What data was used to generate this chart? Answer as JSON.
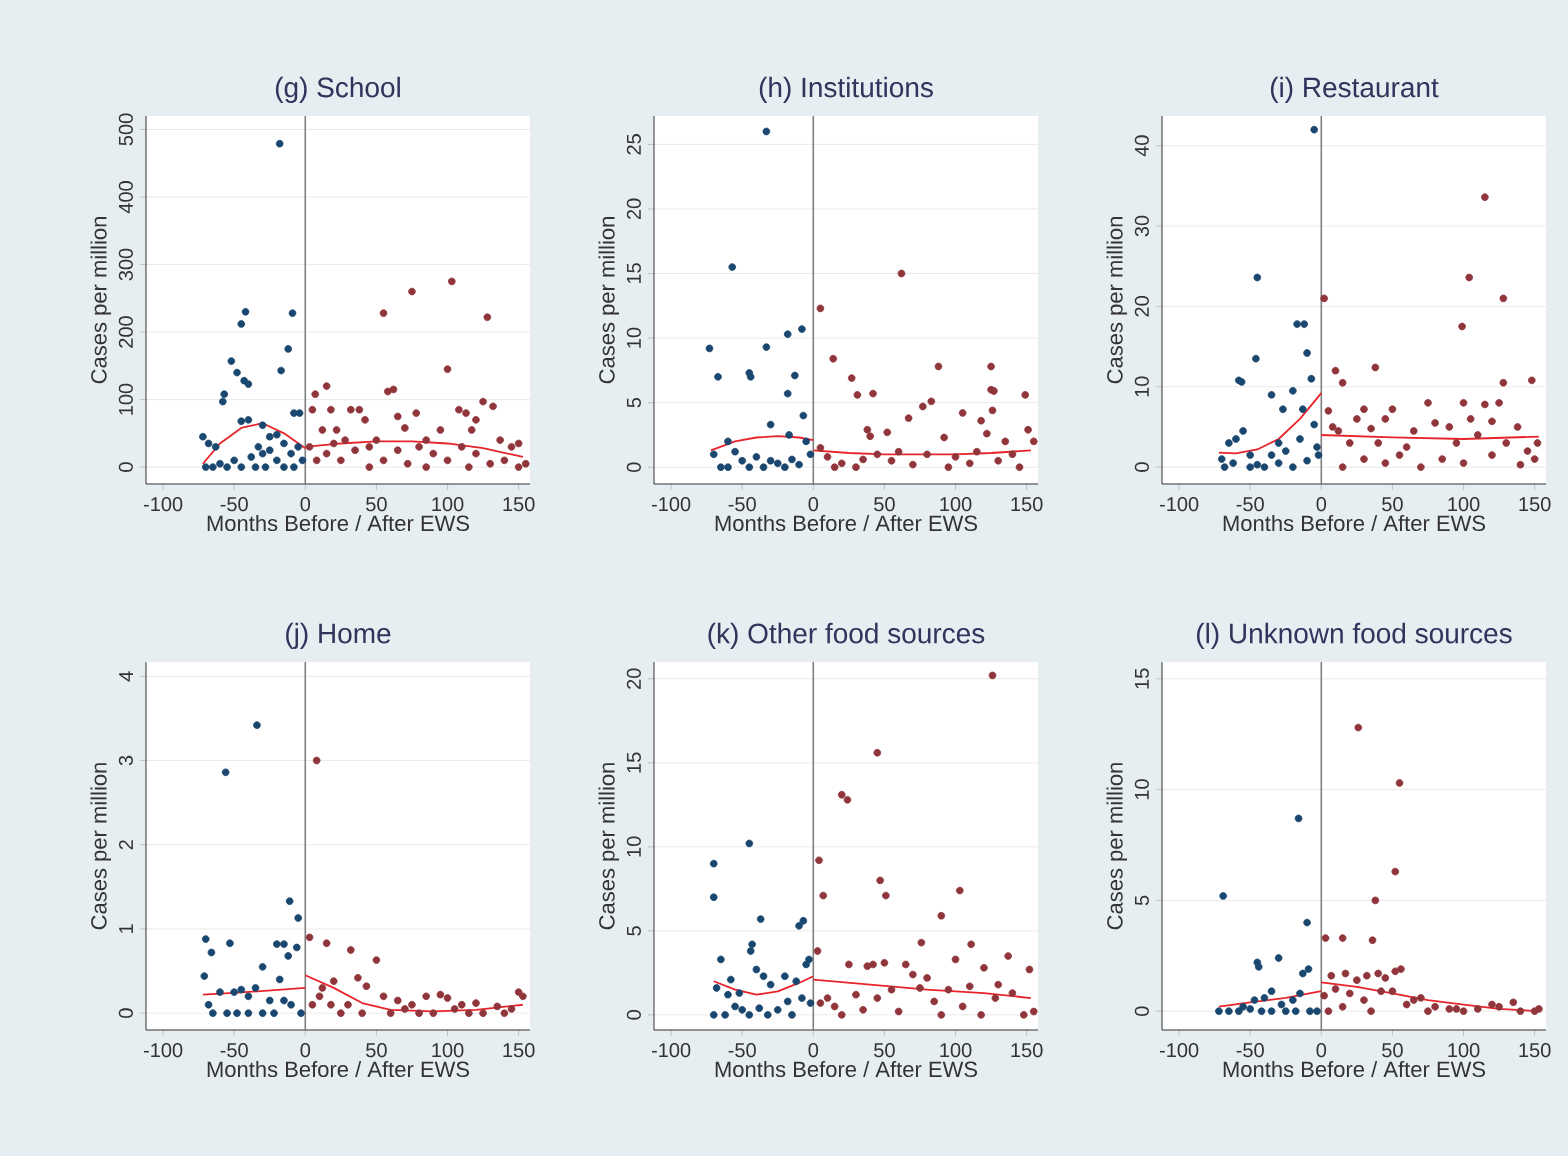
{
  "chart_data": [
    {
      "type": "scatter",
      "title": "(g) School",
      "xlabel": "Months Before / After EWS",
      "ylabel": "Cases per million",
      "xlim": [
        -112,
        158
      ],
      "xticks": [
        -100,
        -50,
        0,
        50,
        100,
        150
      ],
      "ylim": [
        -25,
        520
      ],
      "yticks": [
        0,
        100,
        200,
        300,
        400,
        500
      ],
      "grid": "y",
      "marker": "circle",
      "ref_lines": [
        {
          "axis": "x",
          "value": 0,
          "color": "#7f7f7f"
        }
      ],
      "series": [
        {
          "type": "scatter",
          "color": "#1a476f",
          "x": [
            -18,
            -42,
            -45,
            -9,
            -12,
            -17,
            -52,
            -48,
            -43,
            -40,
            -57,
            -58,
            -40,
            -45,
            -30,
            -8,
            -4,
            -72,
            -68,
            -63,
            -25,
            -20,
            -15,
            -50,
            -60,
            -70,
            -65,
            -55,
            -45,
            -35,
            -30,
            -25,
            -20,
            -15,
            -10,
            -5,
            -2,
            -38,
            -33,
            -28,
            -8
          ],
          "values": [
            479,
            230,
            212,
            228,
            175,
            143,
            157,
            140,
            128,
            123,
            108,
            97,
            70,
            68,
            62,
            80,
            80,
            45,
            35,
            30,
            45,
            48,
            35,
            10,
            5,
            0,
            0,
            0,
            0,
            0,
            20,
            25,
            10,
            0,
            20,
            30,
            10,
            15,
            30,
            0,
            0
          ]
        },
        {
          "type": "scatter",
          "color": "#90353b",
          "x": [
            5,
            7,
            12,
            15,
            18,
            22,
            28,
            32,
            38,
            42,
            55,
            58,
            62,
            65,
            70,
            75,
            78,
            85,
            95,
            100,
            103,
            108,
            113,
            117,
            120,
            125,
            128,
            132,
            137,
            145,
            150,
            3,
            8,
            15,
            20,
            25,
            35,
            45,
            50,
            55,
            65,
            72,
            80,
            90,
            100,
            110,
            120,
            130,
            140,
            150,
            155,
            45,
            85,
            115
          ],
          "values": [
            85,
            108,
            55,
            120,
            85,
            55,
            40,
            85,
            85,
            70,
            228,
            112,
            115,
            75,
            58,
            260,
            80,
            40,
            55,
            145,
            275,
            85,
            80,
            55,
            70,
            97,
            222,
            90,
            40,
            30,
            35,
            30,
            10,
            20,
            35,
            10,
            25,
            30,
            40,
            10,
            25,
            5,
            30,
            20,
            10,
            30,
            20,
            5,
            10,
            0,
            5,
            0,
            0,
            0
          ]
        },
        {
          "type": "line",
          "color": "#e8242b",
          "marker": "none",
          "x": [
            -72,
            -60,
            -45,
            -30,
            -15,
            0
          ],
          "values": [
            5,
            35,
            58,
            65,
            50,
            28
          ]
        },
        {
          "type": "line",
          "color": "#e8242b",
          "marker": "none",
          "x": [
            0,
            25,
            50,
            75,
            100,
            125,
            153
          ],
          "values": [
            30,
            35,
            38,
            38,
            35,
            28,
            15
          ]
        }
      ]
    },
    {
      "type": "scatter",
      "title": "(h) Institutions",
      "xlabel": "Months Before / After EWS",
      "ylabel": "Cases per million",
      "xlim": [
        -112,
        158
      ],
      "xticks": [
        -100,
        -50,
        0,
        50,
        100,
        150
      ],
      "ylim": [
        -1.3,
        27.2
      ],
      "yticks": [
        0,
        5,
        10,
        15,
        20,
        25
      ],
      "grid": "y",
      "marker": "circle",
      "ref_lines": [
        {
          "axis": "x",
          "value": 0,
          "color": "#7f7f7f"
        }
      ],
      "series": [
        {
          "type": "scatter",
          "color": "#1a476f",
          "x": [
            -73,
            -67,
            -57,
            -45,
            -44,
            -33,
            -33,
            -30,
            -18,
            -18,
            -13,
            -8,
            -7,
            -17,
            -60,
            -55,
            -70,
            -65,
            -50,
            -40,
            -35,
            -25,
            -20,
            -10,
            -5,
            -2,
            -45,
            -30,
            -15,
            -60
          ],
          "values": [
            9.2,
            7,
            15.5,
            7.3,
            7,
            26,
            9.3,
            3.3,
            10.3,
            5.7,
            7.1,
            10.7,
            4,
            2.5,
            2,
            1.2,
            1,
            0,
            0.5,
            0.8,
            0,
            0.3,
            0,
            0.2,
            2,
            1,
            0,
            0.5,
            0.6,
            0
          ]
        },
        {
          "type": "scatter",
          "color": "#90353b",
          "x": [
            5,
            14,
            27,
            31,
            42,
            38,
            40,
            52,
            62,
            67,
            77,
            83,
            88,
            92,
            105,
            118,
            122,
            125,
            125,
            127,
            126,
            149,
            151,
            155,
            135,
            5,
            10,
            20,
            30,
            45,
            55,
            70,
            80,
            95,
            100,
            110,
            130,
            140,
            145,
            60,
            15,
            35,
            115
          ],
          "values": [
            12.3,
            8.4,
            6.9,
            5.6,
            5.7,
            2.9,
            2.4,
            2.7,
            15,
            3.8,
            4.7,
            5.1,
            7.8,
            2.3,
            4.2,
            3.6,
            2.6,
            7.8,
            6,
            5.9,
            4.4,
            5.6,
            2.9,
            2,
            2,
            1.5,
            0.8,
            0.3,
            0,
            1,
            0.5,
            0.2,
            1,
            0,
            0.8,
            0.3,
            0.5,
            1,
            0,
            1.2,
            0,
            0.6,
            1.2
          ]
        },
        {
          "type": "line",
          "color": "#e8242b",
          "marker": "none",
          "x": [
            -72,
            -55,
            -40,
            -25,
            -10,
            0
          ],
          "values": [
            1.3,
            2,
            2.3,
            2.4,
            2.3,
            2.1
          ]
        },
        {
          "type": "line",
          "color": "#e8242b",
          "marker": "none",
          "x": [
            0,
            25,
            50,
            75,
            100,
            125,
            153
          ],
          "values": [
            1.3,
            1.1,
            1,
            1,
            1,
            1.1,
            1.3
          ]
        }
      ]
    },
    {
      "type": "scatter",
      "title": "(i) Restaurant",
      "xlabel": "Months Before / After EWS",
      "ylabel": "Cases per million",
      "xlim": [
        -112,
        158
      ],
      "xticks": [
        -100,
        -50,
        0,
        50,
        100,
        150
      ],
      "ylim": [
        -2.1,
        43.7
      ],
      "yticks": [
        0,
        10,
        20,
        30,
        40
      ],
      "grid": "y",
      "marker": "circle",
      "ref_lines": [
        {
          "axis": "x",
          "value": 0,
          "color": "#7f7f7f"
        }
      ],
      "series": [
        {
          "type": "scatter",
          "color": "#1a476f",
          "x": [
            -5,
            -45,
            -58,
            -56,
            -46,
            -17,
            -12,
            -10,
            -7,
            -35,
            -20,
            -27,
            -13,
            -5,
            -3,
            -60,
            -55,
            -65,
            -70,
            -68,
            -62,
            -50,
            -45,
            -40,
            -35,
            -30,
            -25,
            -20,
            -15,
            -10,
            -2,
            -30,
            -50
          ],
          "values": [
            42,
            23.6,
            10.8,
            10.6,
            13.5,
            17.8,
            17.8,
            14.2,
            11,
            9,
            9.5,
            7.2,
            7.2,
            5.3,
            2.5,
            3.5,
            4.5,
            3,
            1,
            0,
            0.5,
            1.5,
            0.3,
            0,
            1.5,
            0.5,
            2,
            0,
            3.5,
            0.8,
            1.5,
            3,
            0
          ]
        },
        {
          "type": "scatter",
          "color": "#90353b",
          "x": [
            2,
            10,
            15,
            38,
            99,
            104,
            115,
            128,
            128,
            148,
            5,
            8,
            12,
            20,
            25,
            30,
            35,
            40,
            45,
            50,
            60,
            65,
            75,
            80,
            90,
            95,
            100,
            105,
            110,
            115,
            120,
            125,
            130,
            138,
            145,
            150,
            152,
            15,
            30,
            45,
            55,
            70,
            85,
            100,
            120,
            140
          ],
          "values": [
            21,
            12,
            10.5,
            12.4,
            17.5,
            23.6,
            33.6,
            21,
            10.5,
            10.8,
            7,
            5,
            4.5,
            3,
            6,
            7.2,
            4.8,
            3,
            6,
            7.2,
            2.5,
            4.5,
            8,
            5.5,
            5,
            3,
            8,
            6,
            4,
            7.8,
            5.7,
            8,
            3,
            5,
            2,
            1,
            3,
            0,
            1,
            0.5,
            1.5,
            0,
            1,
            0.5,
            1.5,
            0.3
          ]
        },
        {
          "type": "line",
          "color": "#e8242b",
          "marker": "none",
          "x": [
            -72,
            -60,
            -45,
            -30,
            -15,
            0
          ],
          "values": [
            1.8,
            1.7,
            2.2,
            3.5,
            6,
            9.2
          ]
        },
        {
          "type": "line",
          "color": "#e8242b",
          "marker": "none",
          "x": [
            0,
            50,
            100,
            153
          ],
          "values": [
            4,
            3.7,
            3.5,
            3.8
          ]
        }
      ]
    },
    {
      "type": "scatter",
      "title": "(j) Home",
      "xlabel": "Months Before / After EWS",
      "ylabel": "Cases per million",
      "xlim": [
        -112,
        158
      ],
      "xticks": [
        -100,
        -50,
        0,
        50,
        100,
        150
      ],
      "ylim": [
        -0.2,
        4.17
      ],
      "yticks": [
        0,
        1,
        2,
        3,
        4
      ],
      "grid": "y",
      "marker": "circle",
      "ref_lines": [
        {
          "axis": "x",
          "value": 0,
          "color": "#7f7f7f"
        }
      ],
      "series": [
        {
          "type": "scatter",
          "color": "#1a476f",
          "x": [
            -34,
            -56,
            -70,
            -66,
            -53,
            -71,
            -60,
            -45,
            -30,
            -20,
            -15,
            -12,
            -11,
            -5,
            -6,
            -18,
            -25,
            -40,
            -68,
            -65,
            -55,
            -48,
            -40,
            -30,
            -22,
            -10,
            -3,
            -35,
            -50,
            -15
          ],
          "values": [
            3.42,
            2.86,
            0.88,
            0.72,
            0.83,
            0.44,
            0.25,
            0.28,
            0.55,
            0.82,
            0.82,
            0.68,
            1.33,
            1.13,
            0.78,
            0.4,
            0.15,
            0.2,
            0.1,
            0,
            0,
            0,
            0,
            0,
            0,
            0.1,
            0,
            0.3,
            0.25,
            0.15
          ]
        },
        {
          "type": "scatter",
          "color": "#90353b",
          "x": [
            8,
            3,
            15,
            20,
            32,
            37,
            43,
            50,
            55,
            65,
            75,
            85,
            95,
            100,
            110,
            120,
            135,
            150,
            153,
            5,
            10,
            25,
            30,
            40,
            60,
            70,
            80,
            90,
            105,
            115,
            125,
            140,
            145,
            12,
            18
          ],
          "values": [
            3,
            0.9,
            0.83,
            0.38,
            0.75,
            0.42,
            0.32,
            0.63,
            0.2,
            0.15,
            0.1,
            0.2,
            0.22,
            0.18,
            0.1,
            0.12,
            0.08,
            0.25,
            0.2,
            0.1,
            0.2,
            0,
            0.1,
            0,
            0,
            0.05,
            0,
            0,
            0.05,
            0,
            0,
            0,
            0.05,
            0.3,
            0.1
          ]
        },
        {
          "type": "line",
          "color": "#e8242b",
          "marker": "none",
          "x": [
            -72,
            -50,
            -25,
            0
          ],
          "values": [
            0.22,
            0.24,
            0.27,
            0.3
          ]
        },
        {
          "type": "line",
          "color": "#e8242b",
          "marker": "none",
          "x": [
            0,
            20,
            40,
            60,
            90,
            120,
            153
          ],
          "values": [
            0.45,
            0.3,
            0.12,
            0.04,
            0.02,
            0.04,
            0.1
          ]
        }
      ]
    },
    {
      "type": "scatter",
      "title": "(k) Other food sources",
      "xlabel": "Months Before / After EWS",
      "ylabel": "Cases per million",
      "xlim": [
        -112,
        158
      ],
      "xticks": [
        -100,
        -50,
        0,
        50,
        100,
        150
      ],
      "ylim": [
        -0.9,
        21
      ],
      "yticks": [
        0,
        5,
        10,
        15,
        20
      ],
      "grid": "y",
      "marker": "circle",
      "ref_lines": [
        {
          "axis": "x",
          "value": 0,
          "color": "#7f7f7f"
        }
      ],
      "series": [
        {
          "type": "scatter",
          "color": "#1a476f",
          "x": [
            -70,
            -70,
            -45,
            -37,
            -43,
            -44,
            -65,
            -58,
            -40,
            -35,
            -30,
            -20,
            -10,
            -7,
            -3,
            -5,
            -12,
            -68,
            -60,
            -52,
            -50,
            -62,
            -55,
            -45,
            -38,
            -32,
            -25,
            -18,
            -15,
            -8,
            -2,
            -70
          ],
          "values": [
            9,
            7,
            10.2,
            5.7,
            4.2,
            3.8,
            3.3,
            2.1,
            2.7,
            2.3,
            1.8,
            2.3,
            5.3,
            5.6,
            3.3,
            3,
            2,
            1.6,
            1.2,
            1.3,
            0.3,
            0,
            0.5,
            0,
            0.4,
            0,
            0.3,
            0.8,
            0,
            1,
            0.7,
            0
          ]
        },
        {
          "type": "scatter",
          "color": "#90353b",
          "x": [
            4,
            7,
            3,
            20,
            24,
            45,
            47,
            51,
            76,
            90,
            103,
            111,
            126,
            137,
            152,
            25,
            38,
            42,
            50,
            65,
            70,
            80,
            100,
            120,
            130,
            10,
            15,
            20,
            30,
            35,
            45,
            55,
            60,
            75,
            85,
            95,
            105,
            110,
            118,
            128,
            140,
            148,
            155,
            5,
            90
          ],
          "values": [
            9.2,
            7.1,
            3.8,
            13.1,
            12.8,
            15.6,
            8,
            7.1,
            4.3,
            5.9,
            7.4,
            4.2,
            20.2,
            3.5,
            2.7,
            3,
            2.9,
            3,
            3.1,
            3,
            2.4,
            2.2,
            3.3,
            2.8,
            1.8,
            1,
            0.5,
            0,
            1.2,
            0.3,
            1,
            1.5,
            0.2,
            1.6,
            0.8,
            1.5,
            0.5,
            1.7,
            0,
            1,
            1.3,
            0,
            0.2,
            0.7,
            0
          ]
        },
        {
          "type": "line",
          "color": "#e8242b",
          "marker": "none",
          "x": [
            -70,
            -55,
            -40,
            -25,
            -10,
            0
          ],
          "values": [
            2,
            1.5,
            1.2,
            1.4,
            1.9,
            2.3
          ]
        },
        {
          "type": "line",
          "color": "#e8242b",
          "marker": "none",
          "x": [
            0,
            40,
            80,
            120,
            153
          ],
          "values": [
            2.1,
            1.8,
            1.5,
            1.3,
            1
          ]
        }
      ]
    },
    {
      "type": "scatter",
      "title": "(l) Unknown food sources",
      "xlabel": "Months Before / After EWS",
      "ylabel": "Cases per million",
      "xlim": [
        -112,
        158
      ],
      "xticks": [
        -100,
        -50,
        0,
        50,
        100,
        150
      ],
      "ylim": [
        -0.85,
        15.76
      ],
      "yticks": [
        0,
        5,
        10,
        15
      ],
      "grid": "y",
      "marker": "circle",
      "ref_lines": [
        {
          "axis": "x",
          "value": 0,
          "color": "#7f7f7f"
        }
      ],
      "series": [
        {
          "type": "scatter",
          "color": "#1a476f",
          "x": [
            -69,
            -16,
            -10,
            -45,
            -44,
            -30,
            -13,
            -9,
            -35,
            -40,
            -47,
            -20,
            -15,
            -72,
            -65,
            -58,
            -50,
            -42,
            -35,
            -25,
            -18,
            -8,
            -3,
            -55,
            -28
          ],
          "values": [
            5.2,
            8.7,
            4,
            2.2,
            2,
            2.4,
            1.7,
            1.9,
            0.9,
            0.6,
            0.5,
            0.5,
            0.8,
            0,
            0,
            0,
            0.1,
            0,
            0,
            0,
            0,
            0,
            0,
            0.2,
            0.3
          ]
        },
        {
          "type": "scatter",
          "color": "#90353b",
          "x": [
            26,
            55,
            52,
            38,
            36,
            3,
            15,
            7,
            17,
            25,
            32,
            40,
            45,
            52,
            56,
            50,
            10,
            20,
            30,
            42,
            60,
            65,
            70,
            80,
            90,
            100,
            110,
            120,
            125,
            135,
            150,
            5,
            15,
            35,
            75,
            95,
            140,
            153,
            2
          ],
          "values": [
            12.8,
            10.3,
            6.3,
            5,
            3.2,
            3.3,
            3.3,
            1.6,
            1.7,
            1.4,
            1.6,
            1.7,
            1.5,
            1.8,
            1.9,
            0.9,
            1,
            0.8,
            0.5,
            0.9,
            0.3,
            0.5,
            0.6,
            0.2,
            0.1,
            0,
            0.1,
            0.3,
            0.2,
            0.4,
            0,
            0,
            0.2,
            0,
            0,
            0.1,
            0,
            0.1,
            0.7
          ]
        },
        {
          "type": "line",
          "color": "#e8242b",
          "marker": "none",
          "x": [
            -72,
            -50,
            -25,
            0
          ],
          "values": [
            0.2,
            0.4,
            0.6,
            0.9
          ]
        },
        {
          "type": "line",
          "color": "#e8242b",
          "marker": "none",
          "x": [
            0,
            25,
            50,
            75,
            100,
            125,
            153
          ],
          "values": [
            1.3,
            1.1,
            0.8,
            0.5,
            0.3,
            0.1,
            0
          ]
        }
      ]
    }
  ]
}
